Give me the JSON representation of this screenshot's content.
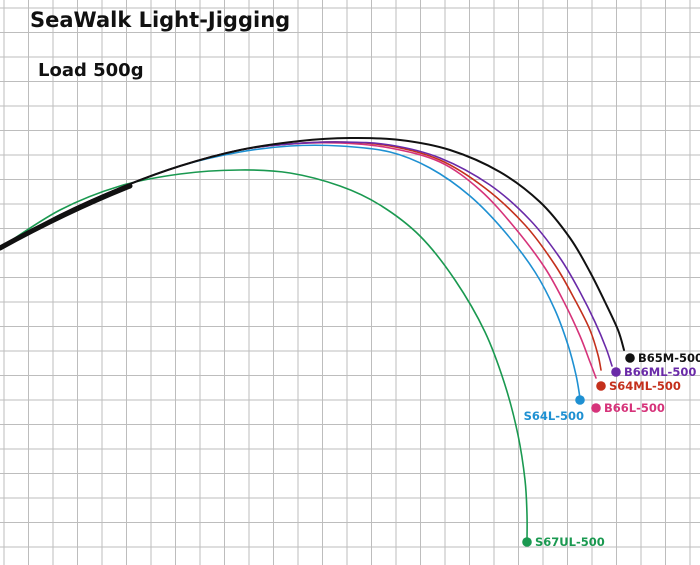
{
  "chart_data": {
    "type": "line",
    "title": "SeaWalk Light-Jigging",
    "subtitle": "Load 500g",
    "xlabel": "",
    "ylabel": "",
    "grid": true,
    "legend": "labels at rod tips",
    "series": [
      {
        "name": "B65M-500",
        "color": "#111111",
        "x": [
          0,
          60,
          120,
          180,
          240,
          300,
          350,
          400,
          450,
          500,
          540,
          570,
          590,
          605,
          618,
          624
        ],
        "y": [
          248,
          215,
          188,
          166,
          150,
          141,
          138,
          140,
          150,
          172,
          202,
          238,
          272,
          302,
          330,
          350
        ]
      },
      {
        "name": "B66ML-500",
        "color": "#6a2aa8",
        "x": [
          0,
          60,
          120,
          180,
          240,
          290,
          340,
          390,
          440,
          490,
          530,
          560,
          580,
          595,
          606,
          612
        ],
        "y": [
          248,
          215,
          188,
          166,
          150,
          144,
          142,
          145,
          158,
          185,
          220,
          258,
          292,
          322,
          348,
          366
        ]
      },
      {
        "name": "S64ML-500",
        "color": "#c4301c",
        "x": [
          0,
          60,
          120,
          180,
          240,
          290,
          340,
          390,
          440,
          485,
          525,
          555,
          575,
          590,
          598,
          601
        ],
        "y": [
          248,
          215,
          188,
          166,
          150,
          144,
          142,
          146,
          160,
          188,
          225,
          265,
          300,
          330,
          355,
          370
        ]
      },
      {
        "name": "B66L-500",
        "color": "#d6337a",
        "x": [
          0,
          60,
          120,
          180,
          240,
          290,
          340,
          390,
          440,
          480,
          515,
          545,
          565,
          580,
          590,
          596
        ],
        "y": [
          248,
          215,
          188,
          166,
          150,
          144,
          143,
          148,
          162,
          190,
          228,
          268,
          304,
          336,
          362,
          378
        ]
      },
      {
        "name": "S64L-500",
        "color": "#1e90d2",
        "x": [
          0,
          60,
          120,
          180,
          240,
          290,
          340,
          390,
          430,
          470,
          505,
          535,
          555,
          568,
          576,
          580
        ],
        "y": [
          248,
          215,
          188,
          166,
          152,
          146,
          146,
          152,
          168,
          196,
          232,
          272,
          310,
          345,
          375,
          398
        ]
      },
      {
        "name": "S67UL-500",
        "color": "#1a9950",
        "x": [
          0,
          60,
          120,
          180,
          240,
          290,
          340,
          380,
          420,
          455,
          485,
          505,
          518,
          525,
          527,
          527
        ],
        "y": [
          248,
          210,
          186,
          174,
          170,
          173,
          186,
          205,
          236,
          280,
          332,
          385,
          435,
          480,
          515,
          540
        ]
      }
    ]
  }
}
